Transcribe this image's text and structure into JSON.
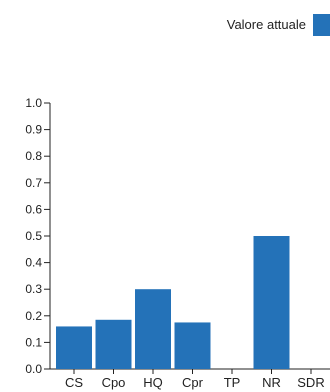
{
  "chart_data": {
    "type": "bar",
    "categories": [
      "CS",
      "Cpo",
      "HQ",
      "Cpr",
      "TP",
      "NR",
      "SDR"
    ],
    "series": [
      {
        "name": "Valore attuale",
        "values": [
          0.16,
          0.185,
          0.3,
          0.175,
          0.0,
          0.5,
          0.0
        ],
        "color": "#2472b8"
      }
    ],
    "title": "",
    "xlabel": "",
    "ylabel": "",
    "ylim": [
      0,
      1
    ],
    "yticks": [
      0.0,
      0.1,
      0.2,
      0.3,
      0.4,
      0.5,
      0.6,
      0.7,
      0.8,
      0.9,
      1.0
    ],
    "ytick_labels": [
      "0.0",
      "0.1",
      "0.2",
      "0.3",
      "0.4",
      "0.5",
      "0.6",
      "0.7",
      "0.8",
      "0.9",
      "1.0"
    ],
    "grid": false,
    "legend": {
      "position": "top-right"
    }
  }
}
